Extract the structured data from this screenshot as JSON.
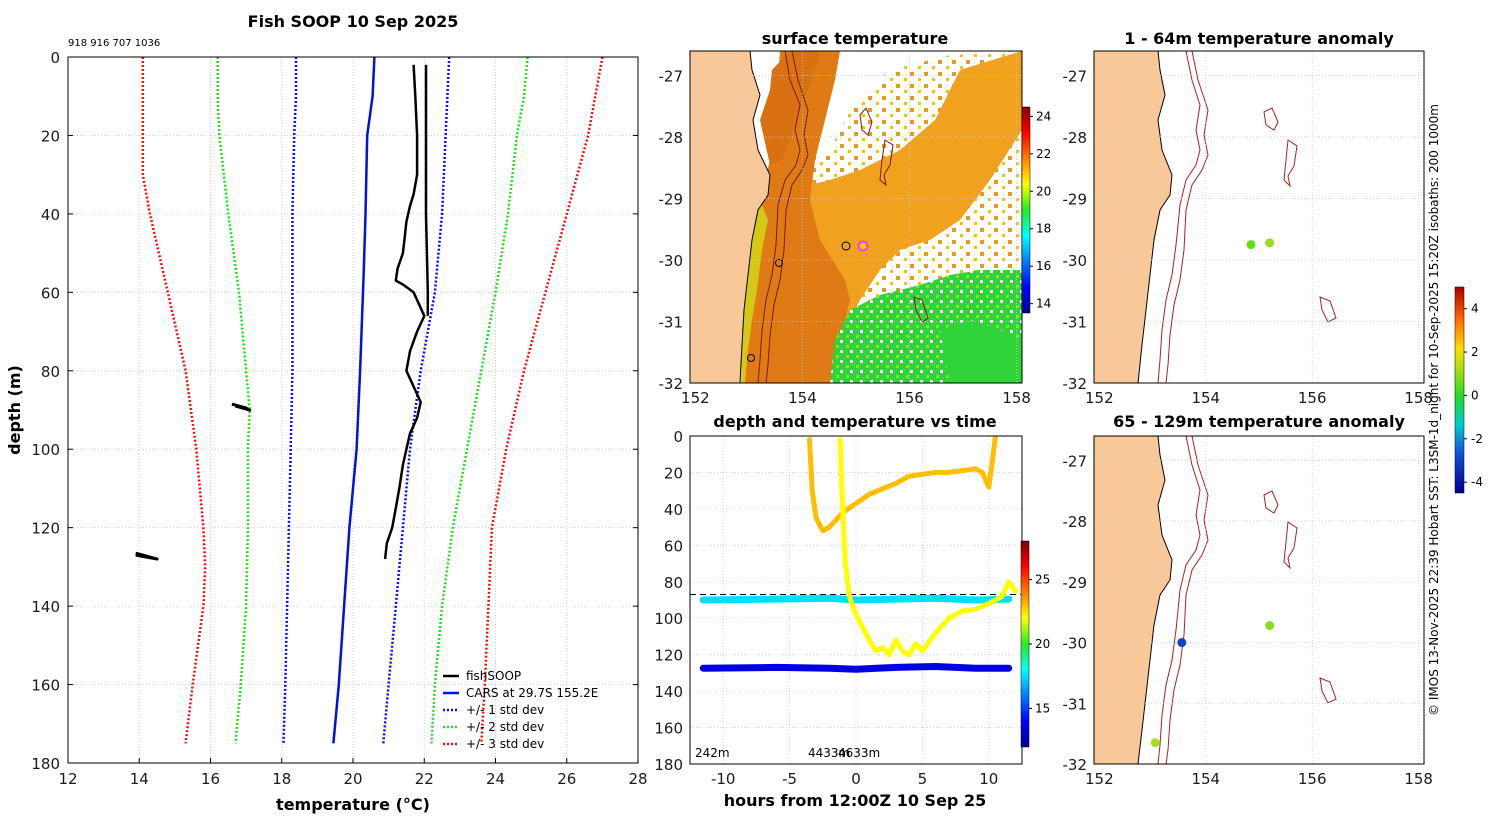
{
  "chart_data": [
    {
      "type": "line",
      "panel": "profile",
      "title": "Fish SOOP 10 Sep 2025",
      "ids_text": "918 916 707 1036",
      "xlabel": "temperature (°C)",
      "ylabel": "depth (m)",
      "xlim": [
        12,
        28
      ],
      "ylim": [
        0,
        180
      ],
      "y_inverted": true,
      "xticks": [
        "12",
        "14",
        "16",
        "18",
        "20",
        "22",
        "24",
        "26",
        "28"
      ],
      "yticks": [
        "0",
        "20",
        "40",
        "60",
        "80",
        "100",
        "120",
        "140",
        "160",
        "180"
      ],
      "legend": [
        "fishSOOP",
        "CARS at 29.7S 155.2E",
        "+/- 1 std dev",
        "+/- 2 std dev",
        "+/- 3 std dev"
      ],
      "colors": {
        "fish": "#000000",
        "cars": "#0010e6",
        "std1": "#0010e6",
        "std2": "#22dd22",
        "std3": "#ee1111"
      },
      "series": [
        {
          "name": "CARS",
          "depth": [
            0,
            10,
            20,
            40,
            55,
            80,
            100,
            120,
            140,
            160,
            175
          ],
          "temp": [
            20.6,
            20.55,
            20.4,
            20.35,
            20.3,
            20.2,
            20.1,
            19.9,
            19.75,
            19.6,
            19.45
          ]
        },
        {
          "name": "-1 std",
          "depth": [
            0,
            10,
            20,
            40,
            60,
            80,
            100,
            120,
            140,
            160,
            175
          ],
          "temp": [
            18.4,
            18.4,
            18.35,
            18.3,
            18.3,
            18.3,
            18.25,
            18.2,
            18.15,
            18.1,
            18.05
          ]
        },
        {
          "name": "+1 std",
          "depth": [
            0,
            10,
            20,
            40,
            60,
            70,
            80,
            100,
            120,
            140,
            160,
            175
          ],
          "temp": [
            22.7,
            22.65,
            22.6,
            22.5,
            22.3,
            22.1,
            21.9,
            21.6,
            21.4,
            21.2,
            21.0,
            20.85
          ]
        },
        {
          "name": "-2 std",
          "depth": [
            0,
            10,
            20,
            40,
            60,
            80,
            90,
            100,
            120,
            140,
            160,
            175
          ],
          "temp": [
            16.2,
            16.2,
            16.25,
            16.5,
            16.8,
            17.0,
            17.1,
            17.05,
            17.05,
            17.0,
            16.85,
            16.7
          ]
        },
        {
          "name": "+2 std",
          "depth": [
            0,
            10,
            20,
            40,
            60,
            80,
            100,
            120,
            140,
            160,
            175
          ],
          "temp": [
            24.9,
            24.8,
            24.6,
            24.35,
            24.0,
            23.6,
            23.2,
            22.8,
            22.5,
            22.3,
            22.2
          ]
        },
        {
          "name": "-3 std",
          "depth": [
            0,
            10,
            30,
            40,
            60,
            80,
            100,
            120,
            130,
            140,
            160,
            175
          ],
          "temp": [
            14.1,
            14.1,
            14.1,
            14.3,
            14.8,
            15.3,
            15.6,
            15.8,
            15.85,
            15.8,
            15.5,
            15.3
          ]
        },
        {
          "name": "+3 std",
          "depth": [
            0,
            10,
            20,
            40,
            60,
            80,
            100,
            120,
            140,
            160,
            175
          ],
          "temp": [
            27.0,
            26.8,
            26.6,
            26.0,
            25.4,
            24.8,
            24.3,
            23.9,
            23.8,
            23.7,
            23.6
          ]
        },
        {
          "name": "fishSOOP",
          "depth": [
            2,
            10,
            20,
            30,
            35,
            38,
            42,
            46,
            50,
            54,
            57,
            58,
            60,
            66,
            70,
            75,
            80,
            84,
            88,
            92,
            96,
            100,
            104,
            110,
            115,
            120,
            124,
            128
          ],
          "temp": [
            21.7,
            21.75,
            21.8,
            21.8,
            21.7,
            21.6,
            21.5,
            21.45,
            21.4,
            21.25,
            21.2,
            21.4,
            21.7,
            22.0,
            21.8,
            21.6,
            21.5,
            21.7,
            21.9,
            21.8,
            21.6,
            21.5,
            21.4,
            21.3,
            21.2,
            21.1,
            20.95,
            20.9
          ]
        },
        {
          "name": "fishSOOP-b",
          "depth": [
            2,
            20,
            40,
            60,
            66
          ],
          "temp": [
            22.05,
            22.05,
            22.05,
            22.1,
            22.1
          ]
        },
        {
          "name": "blob1",
          "depth": [
            88.5,
            89,
            89.5,
            90,
            89
          ],
          "temp": [
            16.6,
            16.8,
            17.0,
            17.1,
            16.7
          ]
        },
        {
          "name": "blob2",
          "depth": [
            126.5,
            127,
            127.5,
            128,
            127
          ],
          "temp": [
            13.9,
            14.1,
            14.3,
            14.5,
            13.9
          ]
        }
      ]
    },
    {
      "type": "heatmap",
      "panel": "surface-map",
      "title": "surface temperature",
      "xlim": [
        151.9,
        158.1
      ],
      "ylim": [
        -32,
        -26.6
      ],
      "xticks": [
        "152",
        "154",
        "156",
        "158"
      ],
      "yticks": [
        "-27",
        "-28",
        "-29",
        "-30",
        "-31",
        "-32"
      ],
      "colorbar_ticks": [
        "24",
        "22",
        "20",
        "18",
        "16",
        "14"
      ],
      "colorbar_range": [
        13.5,
        24.5
      ]
    },
    {
      "type": "scatter",
      "panel": "depth-time",
      "title": "depth and temperature vs time",
      "xlabel": "hours from 12:00Z 10 Sep 25",
      "xlim": [
        -12.5,
        12.5
      ],
      "ylim": [
        0,
        180
      ],
      "xticks": [
        "-10",
        "-5",
        "0",
        "5",
        "10"
      ],
      "yticks": [
        "0",
        "20",
        "40",
        "60",
        "80",
        "100",
        "120",
        "140",
        "160",
        "180"
      ],
      "colorbar_ticks": [
        "25",
        "20",
        "15"
      ],
      "colorbar_range": [
        12,
        28
      ],
      "dashed_line_depth": 87,
      "annotations": [
        "242m",
        "4433m",
        "4633m"
      ],
      "series": [
        {
          "name": "sensor-90m",
          "temp": 17.5,
          "x": [
            -11.5,
            -6,
            -2,
            0,
            3,
            6,
            9,
            11.5
          ],
          "y": [
            90,
            89.5,
            89,
            90,
            89.5,
            89,
            90,
            89.5
          ]
        },
        {
          "name": "sensor-127m",
          "temp": 13.5,
          "x": [
            -11.5,
            -6,
            -2,
            0,
            3,
            6,
            9,
            11.5
          ],
          "y": [
            127.5,
            127,
            127.5,
            128,
            127,
            126.5,
            127.5,
            127.5
          ]
        },
        {
          "name": "trace-a",
          "temp": 23,
          "x": [
            -3.5,
            -3.3,
            -3,
            -2.5,
            -2,
            -1.5,
            -1,
            0,
            1,
            2,
            3,
            4,
            5,
            6,
            7,
            8,
            9,
            9.5,
            10,
            10.3,
            10.5
          ],
          "y": [
            2,
            30,
            45,
            52,
            50,
            46,
            42,
            37,
            32,
            29,
            26,
            22,
            21,
            20,
            20,
            19,
            18,
            20,
            28,
            12,
            0
          ]
        },
        {
          "name": "trace-b",
          "temp": 22,
          "x": [
            -1.2,
            -1,
            -0.8,
            -0.5,
            -0.3,
            0,
            0.5,
            1,
            1.5,
            2,
            2.5,
            3,
            3.5,
            4,
            4.5,
            5,
            6,
            7,
            8,
            9,
            10,
            11,
            11.5,
            12
          ],
          "y": [
            2,
            40,
            70,
            88,
            92,
            98,
            105,
            112,
            118,
            116,
            120,
            112,
            118,
            120,
            114,
            118,
            108,
            100,
            96,
            95,
            92,
            88,
            80,
            85
          ]
        }
      ]
    },
    {
      "type": "scatter",
      "panel": "anomaly-1",
      "title": "1 - 64m temperature anomaly",
      "xlim": [
        151.9,
        158.1
      ],
      "ylim": [
        -32,
        -26.6
      ],
      "xticks": [
        "152",
        "154",
        "156",
        "158"
      ],
      "yticks": [
        "-27",
        "-28",
        "-29",
        "-30",
        "-31",
        "-32"
      ],
      "points": [
        {
          "lon": 154.85,
          "lat": -29.75,
          "anom": 0.3,
          "color": "#66dd11"
        },
        {
          "lon": 155.2,
          "lat": -29.72,
          "anom": 0.7,
          "color": "#99dd22"
        }
      ]
    },
    {
      "type": "scatter",
      "panel": "anomaly-2",
      "title": "65 - 129m temperature anomaly",
      "xlim": [
        151.9,
        158.1
      ],
      "ylim": [
        -32,
        -26.6
      ],
      "xticks": [
        "152",
        "154",
        "156",
        "158"
      ],
      "yticks": [
        "-27",
        "-28",
        "-29",
        "-30",
        "-31",
        "-32"
      ],
      "colorbar_ticks": [
        "4",
        "2",
        "0",
        "-2",
        "-4"
      ],
      "colorbar_range": [
        -4.5,
        5
      ],
      "points": [
        {
          "lon": 155.2,
          "lat": -29.72,
          "anom": 0.8,
          "color": "#88dd22"
        },
        {
          "lon": 153.55,
          "lat": -30.0,
          "anom": -3.2,
          "color": "#1144cc"
        },
        {
          "lon": 153.05,
          "lat": -31.65,
          "anom": 1.0,
          "color": "#aadd22"
        }
      ]
    }
  ],
  "footer": {
    "credit": "© IMOS 13-Nov-2025 22:39 Hobart SST: L3SM-1d_night for 10-Sep-2025 15:20Z isobaths: 200  1000m"
  }
}
